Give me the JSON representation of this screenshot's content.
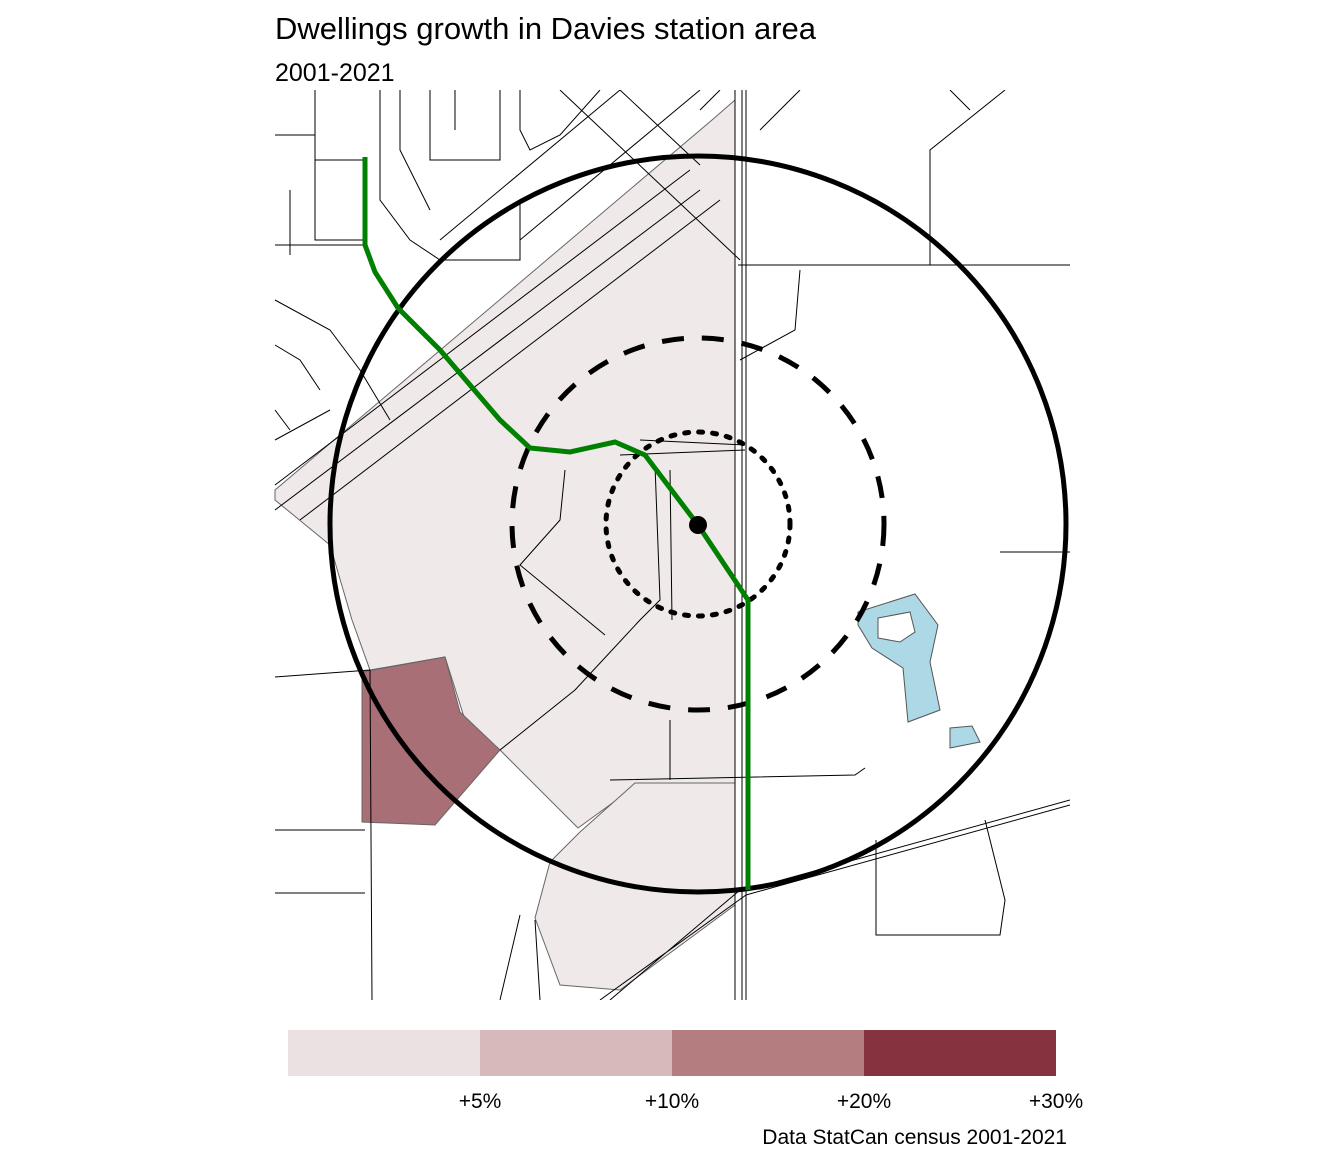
{
  "title": "Dwellings growth in Davies station area",
  "subtitle": "2001-2021",
  "caption": "Data StatCan census 2001-2021",
  "chart_data": {
    "type": "map",
    "legend": {
      "placement": "bottom",
      "breaks": [
        "+5%",
        "+10%",
        "+20%",
        "+30%"
      ],
      "colors": [
        "#ebe1e3",
        "#d7b9bc",
        "#b47d80",
        "#85333f"
      ]
    },
    "layers": {
      "station_marker_color": "#000000",
      "transit_line_color": "#008000",
      "water_color": "#add8e6",
      "rings": [
        "dotted",
        "dashed",
        "solid"
      ]
    }
  }
}
